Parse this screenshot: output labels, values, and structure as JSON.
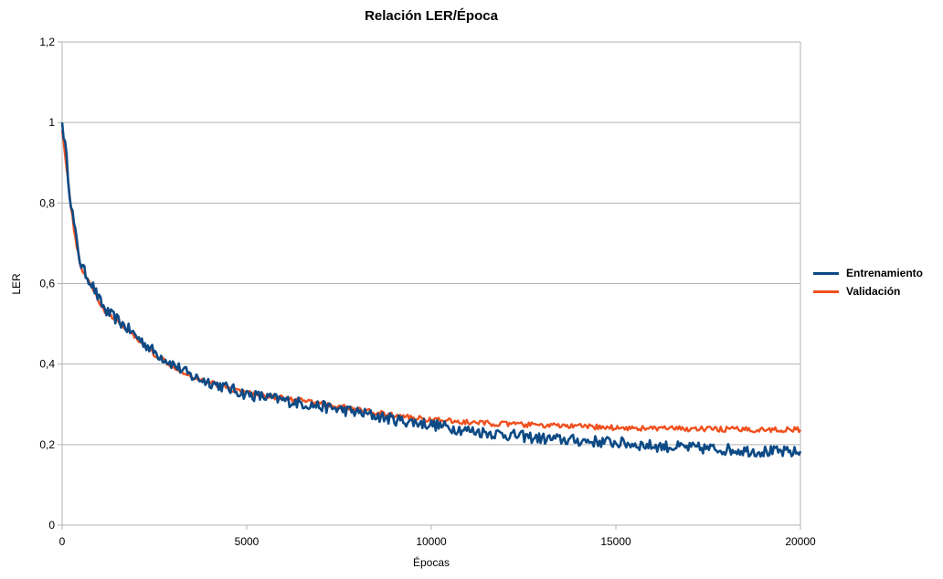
{
  "chart_data": {
    "type": "line",
    "title": "Relación LER/Época",
    "xlabel": "Épocas",
    "ylabel": "LER",
    "xlim": [
      0,
      20000
    ],
    "ylim": [
      0,
      1.2
    ],
    "x_ticks": [
      0,
      5000,
      10000,
      15000,
      20000
    ],
    "x_tick_labels": [
      "0",
      "5000",
      "10000",
      "15000",
      "20000"
    ],
    "y_ticks": [
      0,
      0.2,
      0.4,
      0.6,
      0.8,
      1,
      1.2
    ],
    "y_tick_labels": [
      "0",
      "0,2",
      "0,4",
      "0,6",
      "0,8",
      "1",
      "1,2"
    ],
    "grid": "horizontal",
    "legend_position": "right",
    "x": [
      0,
      100,
      200,
      300,
      400,
      500,
      600,
      800,
      1000,
      1200,
      1500,
      2000,
      2500,
      3000,
      3500,
      4000,
      4500,
      5000,
      6000,
      7000,
      8000,
      9000,
      10000,
      11000,
      12000,
      13000,
      14000,
      15000,
      16000,
      17000,
      18000,
      19000,
      20000
    ],
    "series": [
      {
        "name": "Entrenamiento",
        "color": "#0d4a85",
        "values": [
          1.0,
          0.93,
          0.83,
          0.76,
          0.7,
          0.65,
          0.63,
          0.6,
          0.56,
          0.53,
          0.51,
          0.47,
          0.43,
          0.4,
          0.37,
          0.355,
          0.34,
          0.325,
          0.31,
          0.295,
          0.28,
          0.262,
          0.25,
          0.235,
          0.225,
          0.215,
          0.21,
          0.205,
          0.197,
          0.192,
          0.188,
          0.183,
          0.18
        ]
      },
      {
        "name": "Validación",
        "color": "#f0501e",
        "values": [
          0.98,
          0.91,
          0.82,
          0.75,
          0.69,
          0.645,
          0.625,
          0.595,
          0.555,
          0.525,
          0.505,
          0.465,
          0.425,
          0.395,
          0.37,
          0.355,
          0.34,
          0.33,
          0.315,
          0.302,
          0.287,
          0.272,
          0.262,
          0.255,
          0.251,
          0.248,
          0.245,
          0.242,
          0.24,
          0.239,
          0.238,
          0.237,
          0.237
        ]
      }
    ]
  }
}
